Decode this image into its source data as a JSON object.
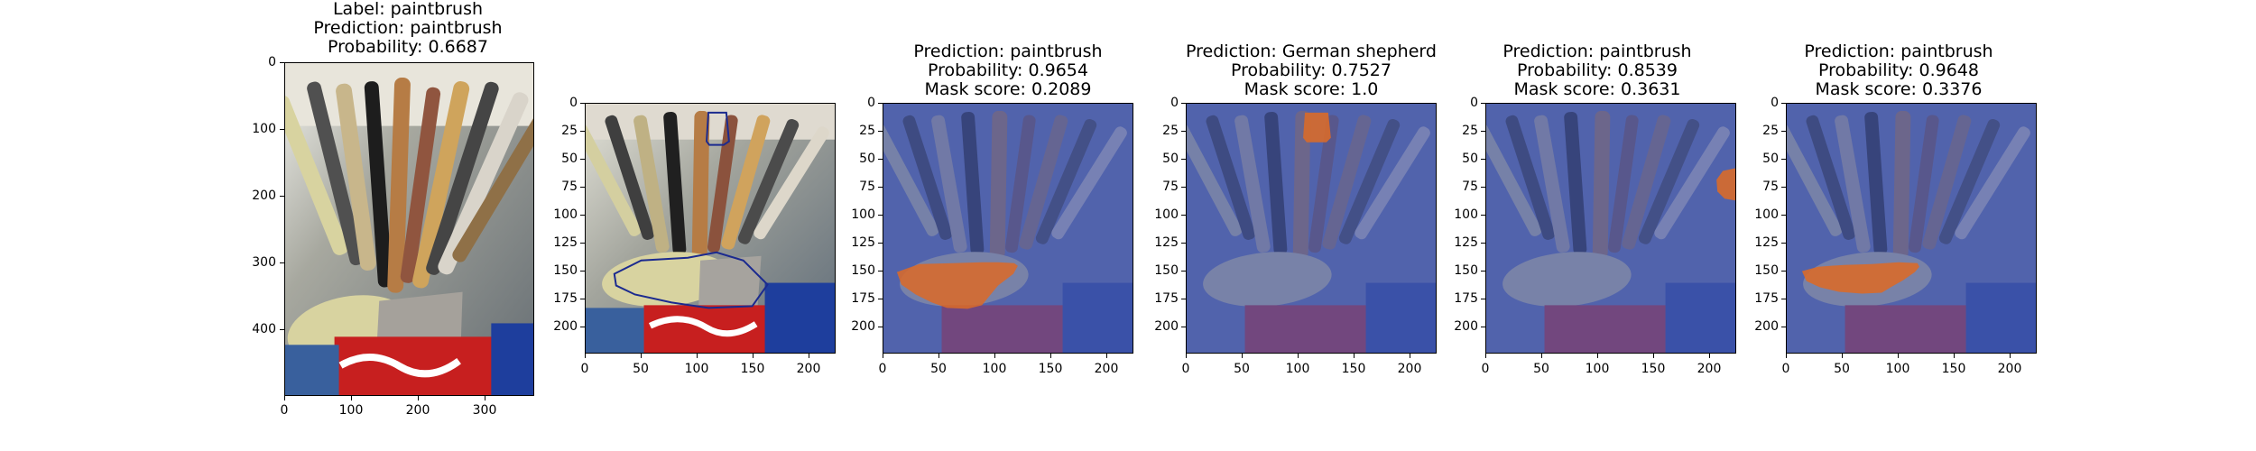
{
  "panels": [
    {
      "lines": [
        "Label: paintbrush",
        "Prediction: paintbrush",
        "Probability: 0.6687"
      ],
      "y_ticks": [
        "0",
        "100",
        "200",
        "300",
        "400"
      ],
      "x_ticks": [
        "0",
        "100",
        "200",
        "300"
      ],
      "overlay": "none",
      "mask_regions": []
    },
    {
      "lines": [],
      "y_ticks": [
        "0",
        "25",
        "50",
        "75",
        "100",
        "125",
        "150",
        "175",
        "200"
      ],
      "x_ticks": [
        "0",
        "50",
        "100",
        "150",
        "200"
      ],
      "overlay": "contour",
      "mask_regions": [
        "brush-head-contour",
        "cloth-brush-contour"
      ]
    },
    {
      "lines": [
        "Prediction: paintbrush",
        "Probability: 0.9654",
        "Mask score: 0.2089"
      ],
      "y_ticks": [
        "0",
        "25",
        "50",
        "75",
        "100",
        "125",
        "150",
        "175",
        "200"
      ],
      "x_ticks": [
        "0",
        "50",
        "100",
        "150",
        "200"
      ],
      "overlay": "blue-tint",
      "mask_regions": [
        "large-left-cloth"
      ]
    },
    {
      "lines": [
        "Prediction: German shepherd",
        "Probability: 0.7527",
        "Mask score: 1.0"
      ],
      "y_ticks": [
        "0",
        "25",
        "50",
        "75",
        "100",
        "125",
        "150",
        "175",
        "200"
      ],
      "x_ticks": [
        "0",
        "50",
        "100",
        "150",
        "200"
      ],
      "overlay": "blue-tint",
      "mask_regions": [
        "top-center-brush"
      ]
    },
    {
      "lines": [
        "Prediction: paintbrush",
        "Probability: 0.8539",
        "Mask score: 0.3631"
      ],
      "y_ticks": [
        "0",
        "25",
        "50",
        "75",
        "100",
        "125",
        "150",
        "175",
        "200"
      ],
      "x_ticks": [
        "0",
        "50",
        "100",
        "150",
        "200"
      ],
      "overlay": "blue-tint",
      "mask_regions": [
        "right-edge-blob"
      ]
    },
    {
      "lines": [
        "Prediction: paintbrush",
        "Probability: 0.9648",
        "Mask score: 0.3376"
      ],
      "y_ticks": [
        "0",
        "25",
        "50",
        "75",
        "100",
        "125",
        "150",
        "175",
        "200"
      ],
      "x_ticks": [
        "0",
        "50",
        "100",
        "150",
        "200"
      ],
      "overlay": "blue-tint",
      "mask_regions": [
        "small-left-cloth"
      ]
    }
  ],
  "colors": {
    "blue_overlay": "#3c4fb0",
    "mask_orange": "#d86a2a",
    "brush_wood": "#b67c45",
    "brush_dark": "#202020",
    "brush_light": "#d8d3a0",
    "can_red": "#c71f1f",
    "can_blue": "#1e3e9d",
    "floor_blue": "#39609d"
  }
}
